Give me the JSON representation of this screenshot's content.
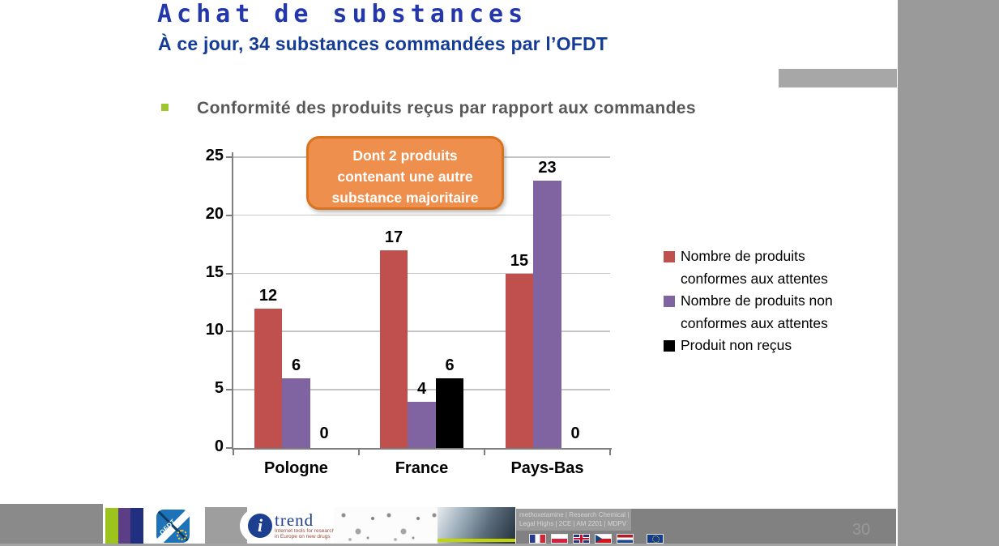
{
  "slide": {
    "title": "Achat de substances",
    "subtitle": "À ce jour, 34 substances commandées par l’OFDT",
    "heading": "Conformité des produits reçus par rapport aux commandes",
    "callout_lines": [
      "Dont 2 produits",
      "contenant une autre",
      "substance majoritaire"
    ]
  },
  "chart_data": {
    "type": "bar",
    "title": "",
    "categories": [
      "Pologne",
      "France",
      "Pays-Bas"
    ],
    "series": [
      {
        "name": "Nombre de produits conformes aux attentes",
        "color": "#C0504D",
        "values": [
          12,
          17,
          15
        ]
      },
      {
        "name": "Nombre de produits non conformes aux attentes",
        "color": "#8064A2",
        "values": [
          6,
          4,
          23
        ]
      },
      {
        "name": "Produit non reçus",
        "color": "#000000",
        "values": [
          0,
          6,
          0
        ]
      }
    ],
    "ylim": [
      0,
      25
    ],
    "yticks": [
      0,
      5,
      10,
      15,
      20,
      25
    ],
    "grid": true,
    "legend_position": "right",
    "value_labels": true,
    "annotation": "Dont 2 produits contenant une autre substance majoritaire"
  },
  "footer": {
    "ofdt_logo_text": "OFDT",
    "itrend_logo": {
      "i": "i",
      "name": "trend",
      "tagline1": "Internet tools for research",
      "tagline2": "in Europe on new drugs"
    },
    "keywords_line1": "methoxetamine | Research Chemical |",
    "keywords_line2": "Legal Highs |  2CE  |  AM 2201 | MDPV",
    "flags": [
      "france",
      "poland",
      "uk",
      "czech",
      "netherlands",
      "eu"
    ],
    "page_number": "30"
  },
  "colors": {
    "title_blue": "#2337AA",
    "subtitle_blue": "#143C96",
    "heading_gray": "#595959",
    "bullet_green": "#9DC62F",
    "callout_fill": "#EF8F4D",
    "callout_border": "#D9731F",
    "bar_red": "#C0504D",
    "bar_purple": "#8064A2",
    "bar_black": "#000000",
    "right_column_gray": "#9A9A9A",
    "top_bar_gray": "#A7A7A7",
    "footer_band_gray": "#818181"
  }
}
